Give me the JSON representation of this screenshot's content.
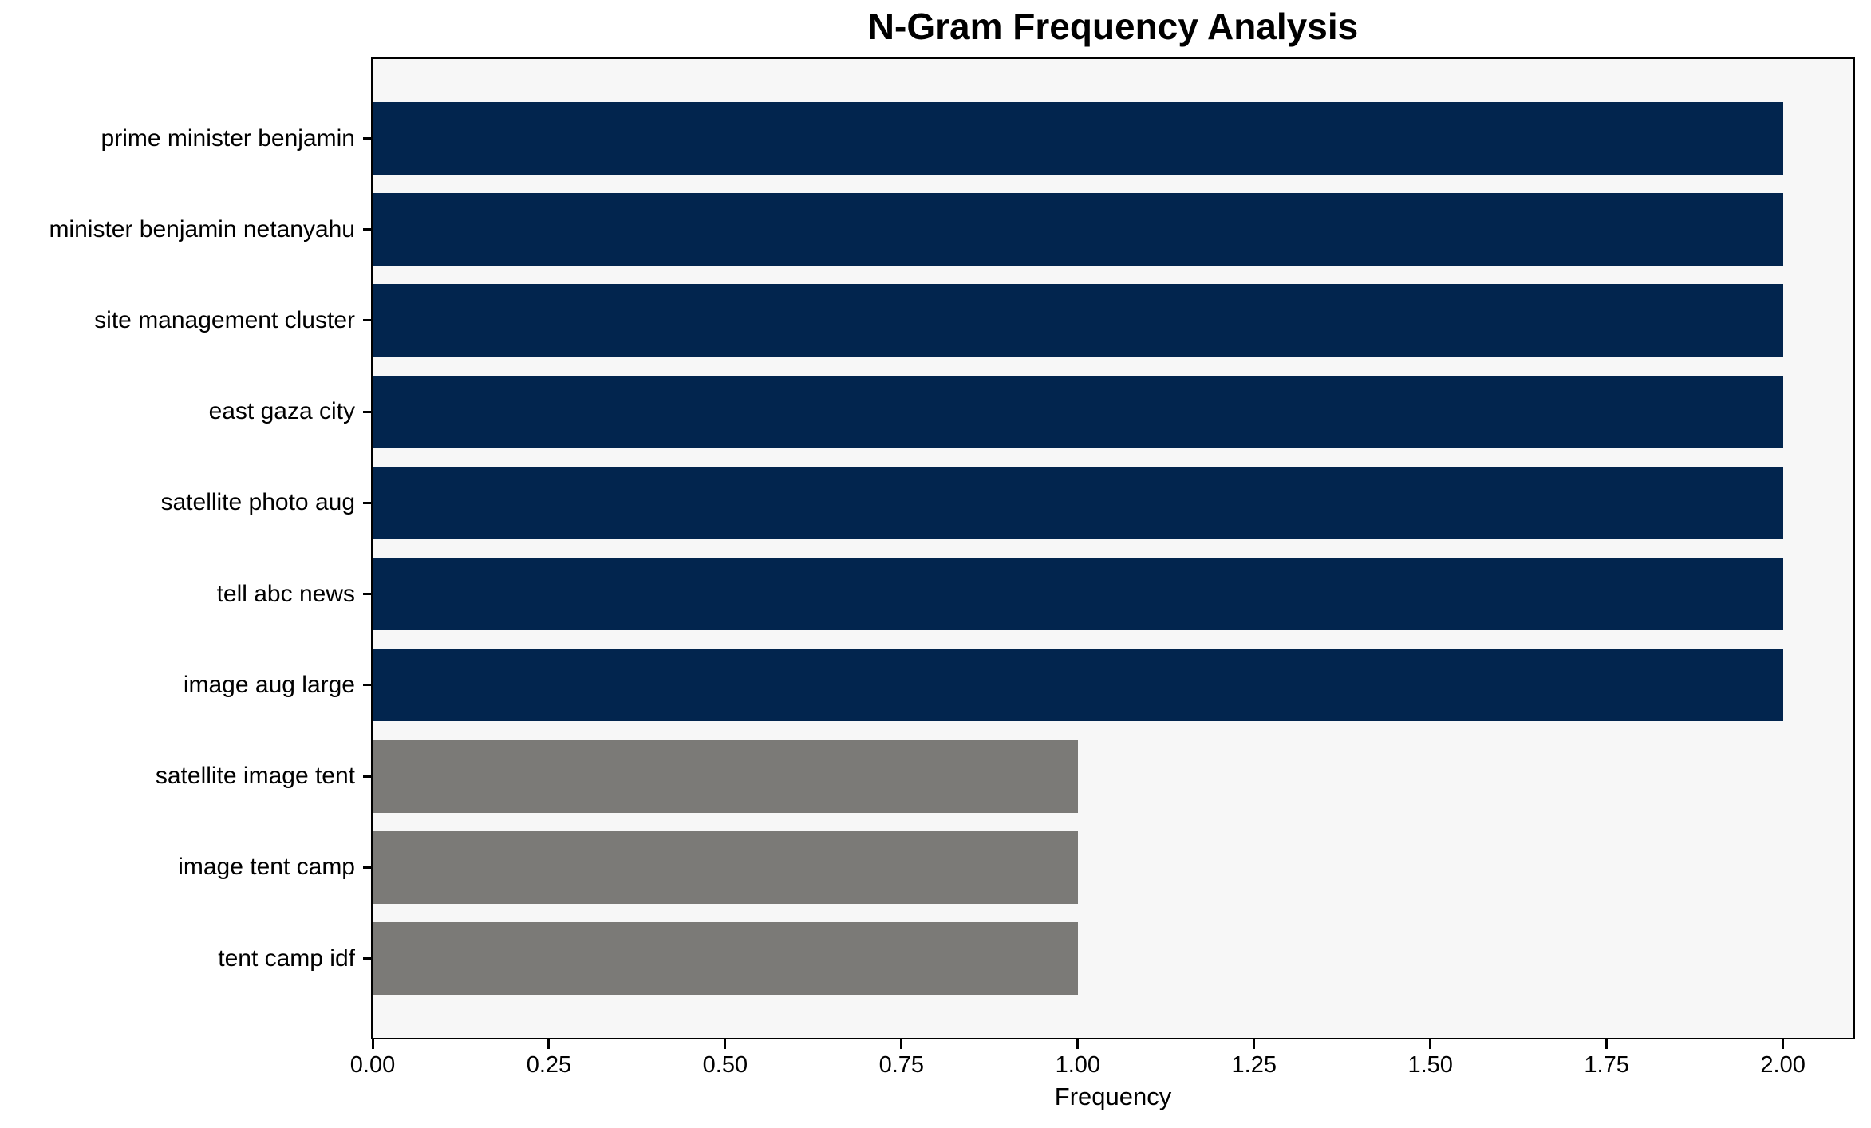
{
  "chart_data": {
    "type": "bar",
    "orientation": "horizontal",
    "title": "N-Gram Frequency Analysis",
    "xlabel": "Frequency",
    "ylabel": "",
    "categories": [
      "prime minister benjamin",
      "minister benjamin netanyahu",
      "site management cluster",
      "east gaza city",
      "satellite photo aug",
      "tell abc news",
      "image aug large",
      "satellite image tent",
      "image tent camp",
      "tent camp idf"
    ],
    "values": [
      2,
      2,
      2,
      2,
      2,
      2,
      2,
      1,
      1,
      1
    ],
    "bar_colors": [
      "#02254E",
      "#02254E",
      "#02254E",
      "#02254E",
      "#02254E",
      "#02254E",
      "#02254E",
      "#7B7A77",
      "#7B7A77",
      "#7B7A77"
    ],
    "xlim": [
      0,
      2.1
    ],
    "xticks": [
      0,
      0.25,
      0.5,
      0.75,
      1.0,
      1.25,
      1.5,
      1.75,
      2.0
    ],
    "xtick_labels": [
      "0.00",
      "0.25",
      "0.50",
      "0.75",
      "1.00",
      "1.25",
      "1.50",
      "1.75",
      "2.00"
    ],
    "grid": false,
    "legend_position": "none",
    "colors": {
      "high_frequency_bar": "#02254E",
      "low_frequency_bar": "#7B7A77",
      "plot_background": "#F7F7F7",
      "figure_background": "#FFFFFF",
      "axis": "#000000",
      "text": "#000000"
    }
  }
}
